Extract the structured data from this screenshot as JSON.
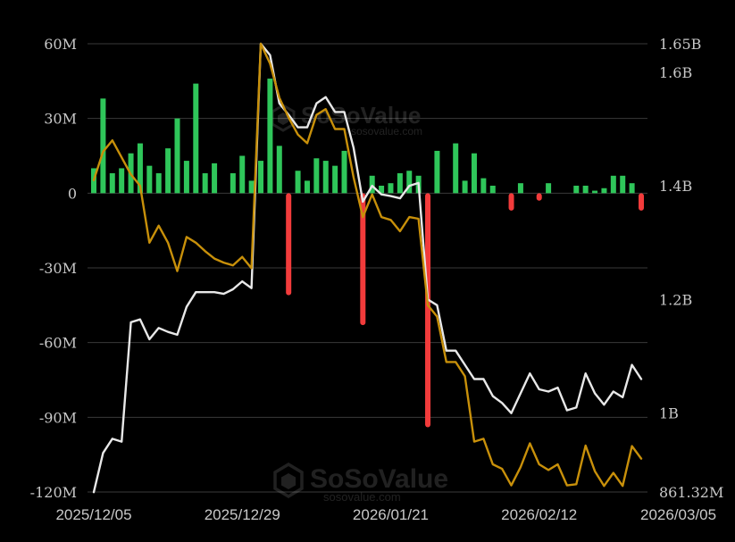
{
  "watermark": {
    "brand": "SoSoValue",
    "url": "sosovalue.com"
  },
  "chart_data": {
    "type": "bar+line",
    "left_axis": {
      "ylim": [
        -120000000,
        60000000
      ],
      "ticks": [
        {
          "value": 60000000,
          "label": "60M"
        },
        {
          "value": 30000000,
          "label": "30M"
        },
        {
          "value": 0,
          "label": "0"
        },
        {
          "value": -30000000,
          "label": "-30M"
        },
        {
          "value": -60000000,
          "label": "-60M"
        },
        {
          "value": -90000000,
          "label": "-90M"
        },
        {
          "value": -120000000,
          "label": "-120M"
        }
      ]
    },
    "right_axis": {
      "ylim": [
        861320000,
        1650000000
      ],
      "ticks": [
        {
          "value": 1650000000,
          "label": "1.65B"
        },
        {
          "value": 1600000000,
          "label": "1.6B"
        },
        {
          "value": 1400000000,
          "label": "1.4B"
        },
        {
          "value": 1200000000,
          "label": "1.2B"
        },
        {
          "value": 1000000000,
          "label": "1B"
        },
        {
          "value": 861320000,
          "label": "861.32M"
        }
      ]
    },
    "x_ticks": [
      {
        "index": 0,
        "label": "2025/12/05"
      },
      {
        "index": 16,
        "label": "2025/12/29"
      },
      {
        "index": 32,
        "label": "2026/01/21"
      },
      {
        "index": 48,
        "label": "2026/02/12"
      },
      {
        "index": 63,
        "label": "2026/03/05"
      }
    ],
    "colors": {
      "positive": "#2fc65a",
      "negative": "#f23b3b",
      "line_white": "#e8e8e8",
      "line_gold": "#c8900a",
      "grid": "#3a3a3a",
      "background": "#000000"
    },
    "flows": [
      10000000,
      38000000,
      8000000,
      10000000,
      16000000,
      20000000,
      11000000,
      8000000,
      18000000,
      30000000,
      13000000,
      44000000,
      8000000,
      12000000,
      0,
      8000000,
      15000000,
      5000000,
      13000000,
      46000000,
      19000000,
      -41000000,
      9000000,
      5000000,
      14000000,
      13000000,
      11000000,
      17000000,
      0,
      -53000000,
      7000000,
      3000000,
      4000000,
      8000000,
      9000000,
      7000000,
      -94000000,
      17000000,
      0,
      20000000,
      5000000,
      16000000,
      6000000,
      3000000,
      0,
      -7000000,
      4000000,
      0,
      -3000000,
      4000000,
      0,
      0,
      3000000,
      3000000,
      1000000,
      2000000,
      7000000,
      7000000,
      4000000,
      -7000000
    ],
    "series": [
      {
        "axis": "right",
        "color": "white",
        "values": [
          861000000,
          930000000,
          955000000,
          950000000,
          1160000000,
          1165000000,
          1130000000,
          1150000000,
          1143000000,
          1138000000,
          1187000000,
          1213000000,
          1213000000,
          1213000000,
          1210000000,
          1218000000,
          1232000000,
          1220000000,
          1650000000,
          1630000000,
          1545000000,
          1525000000,
          1503000000,
          1503000000,
          1545000000,
          1556000000,
          1530000000,
          1530000000,
          1467000000,
          1372000000,
          1400000000,
          1385000000,
          1382000000,
          1378000000,
          1400000000,
          1405000000,
          1200000000,
          1190000000,
          1110000000,
          1110000000,
          1085000000,
          1060000000,
          1060000000,
          1030000000,
          1018000000,
          1000000000,
          1035000000,
          1070000000,
          1042000000,
          1038000000,
          1045000000,
          1005000000,
          1010000000,
          1070000000,
          1035000000,
          1015000000,
          1038000000,
          1028000000,
          1085000000,
          1060000000
        ]
      },
      {
        "axis": "right",
        "color": "gold",
        "values": [
          1410000000,
          1460000000,
          1480000000,
          1450000000,
          1420000000,
          1400000000,
          1300000000,
          1330000000,
          1300000000,
          1250000000,
          1310000000,
          1300000000,
          1285000000,
          1272000000,
          1265000000,
          1260000000,
          1275000000,
          1255000000,
          1650000000,
          1615000000,
          1555000000,
          1520000000,
          1490000000,
          1475000000,
          1525000000,
          1535000000,
          1500000000,
          1500000000,
          1415000000,
          1345000000,
          1385000000,
          1345000000,
          1340000000,
          1320000000,
          1345000000,
          1342000000,
          1190000000,
          1170000000,
          1090000000,
          1090000000,
          1065000000,
          950000000,
          955000000,
          910000000,
          902000000,
          873000000,
          905000000,
          947000000,
          910000000,
          900000000,
          910000000,
          873000000,
          875000000,
          943000000,
          898000000,
          872000000,
          895000000,
          872000000,
          942000000,
          920000000
        ]
      }
    ]
  }
}
